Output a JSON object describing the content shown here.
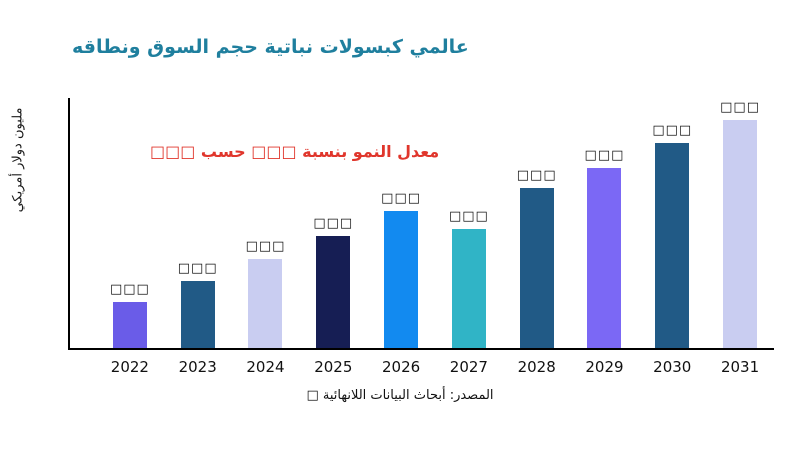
{
  "chart_data": {
    "type": "bar",
    "title": "عالمي كبسولات نباتية حجم السوق ونطاقه",
    "title_color": "#1f7f9e",
    "ylabel": "مليون دولار أمريكي",
    "xlabel": "",
    "categories": [
      "2022",
      "2023",
      "2024",
      "2025",
      "2026",
      "2027",
      "2028",
      "2029",
      "2030",
      "2031"
    ],
    "values": [
      46,
      67,
      89,
      112,
      137,
      119,
      160,
      180,
      205,
      228
    ],
    "value_labels": [
      "□□□",
      "□□□",
      "□□□",
      "□□□",
      "□□□",
      "□□□",
      "□□□",
      "□□□",
      "□□□",
      "□□□"
    ],
    "bar_colors": [
      "#6a5ce8",
      "#215a86",
      "#c9cdf1",
      "#161e54",
      "#128af0",
      "#30b4c6",
      "#215a86",
      "#7b68f5",
      "#215a86",
      "#c9cdf1"
    ],
    "ylim": [
      0,
      250
    ],
    "grid": false,
    "legend": false,
    "annotation": {
      "text": "معدل النمو بنسبة □□□ حسب □□□",
      "color": "#e0362c"
    },
    "source": "المصدر: أبحاث البيانات اللانهائية □"
  }
}
